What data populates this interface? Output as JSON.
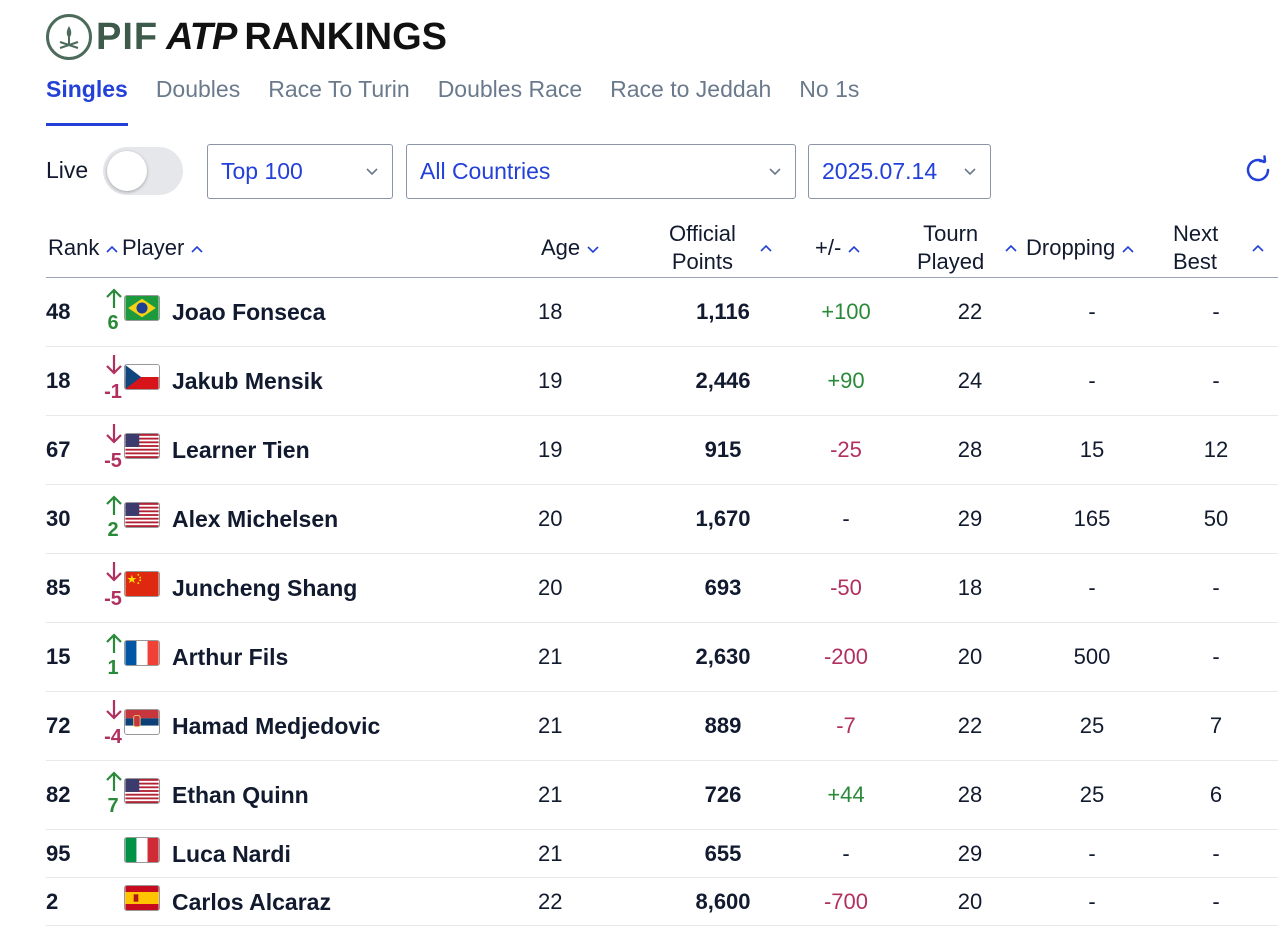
{
  "brand": {
    "pif": "PIF",
    "atp": "ATP",
    "title": "RANKINGS"
  },
  "tabs": [
    "Singles",
    "Doubles",
    "Race To Turin",
    "Doubles Race",
    "Race to Jeddah",
    "No 1s"
  ],
  "filters": {
    "live_label": "Live",
    "top": "Top 100",
    "countries": "All Countries",
    "date": "2025.07.14"
  },
  "columns": {
    "rank": "Rank",
    "player": "Player",
    "age": "Age",
    "points_1": "Official",
    "points_2": "Points",
    "diff": "+/-",
    "tourn_1": "Tourn",
    "tourn_2": "Played",
    "dropping": "Dropping",
    "next_1": "Next",
    "next_2": "Best"
  },
  "colors": {
    "accent": "#2340d8",
    "up": "#2a8a3a",
    "down": "#b03060"
  },
  "rows": [
    {
      "rank": "48",
      "move": "6",
      "dir": "up",
      "flag": "brazil-flag",
      "name": "Joao Fonseca",
      "age": "18",
      "points": "1,116",
      "diff": "+100",
      "tourn": "22",
      "dropping": "-",
      "next": "-"
    },
    {
      "rank": "18",
      "move": "-1",
      "dir": "down",
      "flag": "czech-flag",
      "name": "Jakub Mensik",
      "age": "19",
      "points": "2,446",
      "diff": "+90",
      "tourn": "24",
      "dropping": "-",
      "next": "-"
    },
    {
      "rank": "67",
      "move": "-5",
      "dir": "down",
      "flag": "usa-flag",
      "name": "Learner Tien",
      "age": "19",
      "points": "915",
      "diff": "-25",
      "tourn": "28",
      "dropping": "15",
      "next": "12"
    },
    {
      "rank": "30",
      "move": "2",
      "dir": "up",
      "flag": "usa-flag",
      "name": "Alex Michelsen",
      "age": "20",
      "points": "1,670",
      "diff": "-",
      "tourn": "29",
      "dropping": "165",
      "next": "50"
    },
    {
      "rank": "85",
      "move": "-5",
      "dir": "down",
      "flag": "china-flag",
      "name": "Juncheng Shang",
      "age": "20",
      "points": "693",
      "diff": "-50",
      "tourn": "18",
      "dropping": "-",
      "next": "-"
    },
    {
      "rank": "15",
      "move": "1",
      "dir": "up",
      "flag": "france-flag",
      "name": "Arthur Fils",
      "age": "21",
      "points": "2,630",
      "diff": "-200",
      "tourn": "20",
      "dropping": "500",
      "next": "-"
    },
    {
      "rank": "72",
      "move": "-4",
      "dir": "down",
      "flag": "serbia-flag",
      "name": "Hamad Medjedovic",
      "age": "21",
      "points": "889",
      "diff": "-7",
      "tourn": "22",
      "dropping": "25",
      "next": "7"
    },
    {
      "rank": "82",
      "move": "7",
      "dir": "up",
      "flag": "usa-flag",
      "name": "Ethan Quinn",
      "age": "21",
      "points": "726",
      "diff": "+44",
      "tourn": "28",
      "dropping": "25",
      "next": "6"
    },
    {
      "rank": "95",
      "move": "",
      "dir": "none",
      "flag": "italy-flag",
      "name": "Luca Nardi",
      "age": "21",
      "points": "655",
      "diff": "-",
      "tourn": "29",
      "dropping": "-",
      "next": "-"
    },
    {
      "rank": "2",
      "move": "",
      "dir": "none",
      "flag": "spain-flag",
      "name": "Carlos Alcaraz",
      "age": "22",
      "points": "8,600",
      "diff": "-700",
      "tourn": "20",
      "dropping": "-",
      "next": "-"
    }
  ]
}
